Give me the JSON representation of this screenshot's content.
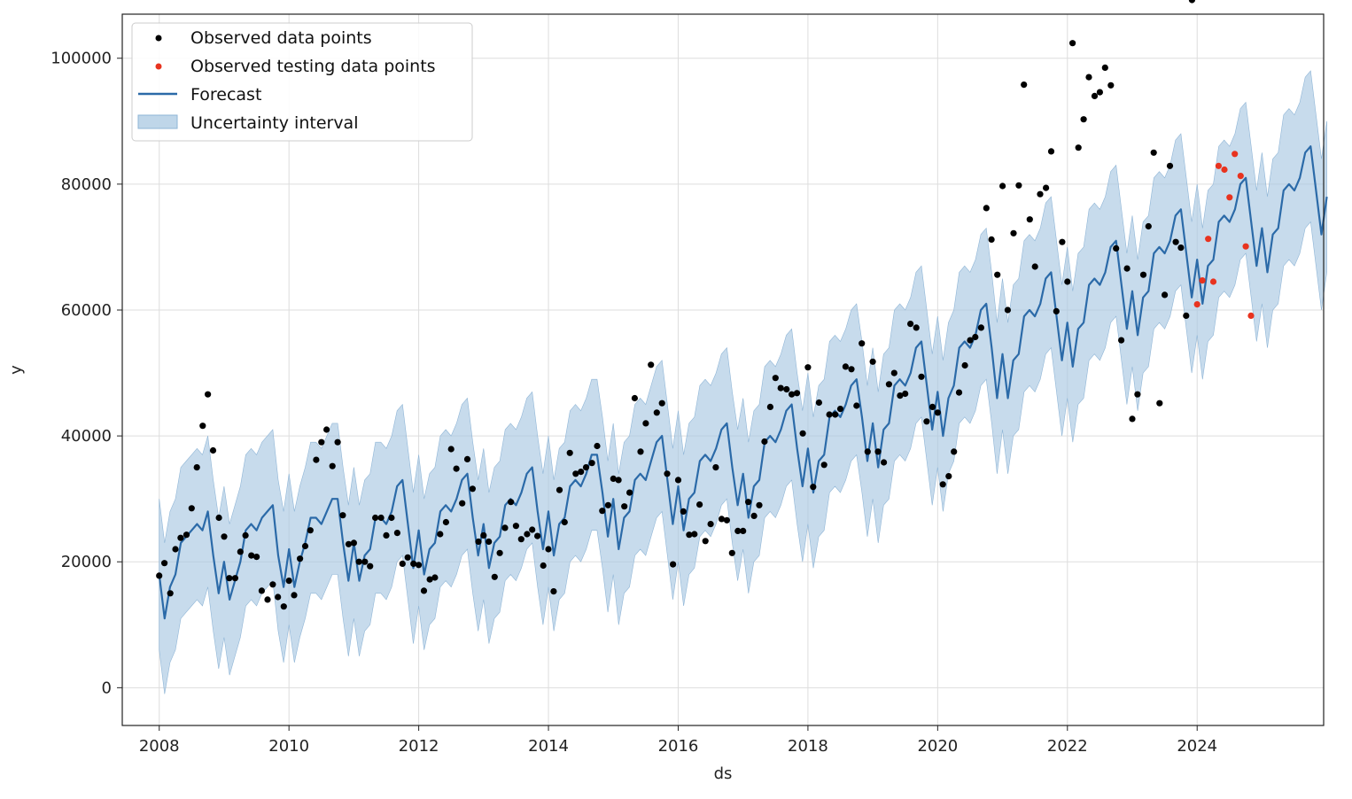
{
  "chart_data": {
    "type": "line",
    "title": "",
    "xlabel": "ds",
    "ylabel": "y",
    "x_range": [
      2007.43,
      2025.95
    ],
    "ylim": [
      -6000,
      107000
    ],
    "x_ticks": [
      2008,
      2010,
      2012,
      2014,
      2016,
      2018,
      2020,
      2022,
      2024
    ],
    "x_tick_labels": [
      "2008",
      "2010",
      "2012",
      "2014",
      "2016",
      "2018",
      "2020",
      "2022",
      "2024"
    ],
    "y_ticks": [
      0,
      20000,
      40000,
      60000,
      80000,
      100000
    ],
    "y_tick_labels": [
      "0",
      "20000",
      "40000",
      "60000",
      "80000",
      "100000"
    ],
    "grid": true,
    "legend_position": "top-left",
    "colors": {
      "observed": "#000000",
      "testing": "#e8331f",
      "forecast": "#2b6aa8",
      "interval": "#a9c8e2"
    },
    "legend": [
      {
        "key": "observed",
        "label": "Observed data points"
      },
      {
        "key": "testing",
        "label": "Observed testing data points"
      },
      {
        "key": "forecast",
        "label": "Forecast"
      },
      {
        "key": "interval",
        "label": "Uncertainty interval"
      }
    ],
    "forecast_start": 2008.0,
    "forecast_step": 0.08333,
    "forecast": [
      18000,
      11000,
      16000,
      18000,
      23000,
      24000,
      25000,
      26000,
      25000,
      28000,
      21000,
      15000,
      20000,
      14000,
      17000,
      20000,
      25000,
      26000,
      25000,
      27000,
      28000,
      29000,
      21000,
      16000,
      22000,
      16000,
      20000,
      23000,
      27000,
      27000,
      26000,
      28000,
      30000,
      30000,
      23000,
      17000,
      23000,
      17000,
      21000,
      22000,
      27000,
      27000,
      26000,
      28000,
      32000,
      33000,
      26000,
      19000,
      25000,
      18000,
      22000,
      23000,
      28000,
      29000,
      28000,
      30000,
      33000,
      34000,
      27000,
      21000,
      26000,
      19000,
      23000,
      24000,
      29000,
      30000,
      29000,
      31000,
      34000,
      35000,
      28000,
      22000,
      28000,
      21000,
      26000,
      27000,
      32000,
      33000,
      32000,
      34000,
      37000,
      37000,
      31000,
      24000,
      30000,
      22000,
      27000,
      28000,
      33000,
      34000,
      33000,
      36000,
      39000,
      40000,
      33000,
      26000,
      32000,
      25000,
      30000,
      31000,
      36000,
      37000,
      36000,
      38000,
      41000,
      42000,
      35000,
      29000,
      34000,
      27000,
      32000,
      33000,
      39000,
      40000,
      39000,
      41000,
      44000,
      45000,
      38000,
      32000,
      38000,
      31000,
      36000,
      37000,
      43000,
      44000,
      43000,
      45000,
      48000,
      49000,
      43000,
      36000,
      42000,
      35000,
      41000,
      42000,
      48000,
      49000,
      48000,
      50000,
      54000,
      55000,
      48000,
      41000,
      47000,
      40000,
      46000,
      48000,
      54000,
      55000,
      54000,
      56000,
      60000,
      61000,
      54000,
      46000,
      53000,
      46000,
      52000,
      53000,
      59000,
      60000,
      59000,
      61000,
      65000,
      66000,
      59000,
      52000,
      58000,
      51000,
      57000,
      58000,
      64000,
      65000,
      64000,
      66000,
      70000,
      71000,
      64000,
      57000,
      63000,
      56000,
      62000,
      63000,
      69000,
      70000,
      69000,
      71000,
      75000,
      76000,
      69000,
      62000,
      68000,
      61000,
      67000,
      68000,
      74000,
      75000,
      74000,
      76000,
      80000,
      81000,
      74000,
      67000,
      73000,
      66000,
      72000,
      73000,
      79000,
      80000,
      79000,
      81000,
      85000,
      86000,
      79000,
      72000,
      78000
    ],
    "interval_lower": [
      6000,
      -1000,
      4000,
      6000,
      11000,
      12000,
      13000,
      14000,
      13000,
      16000,
      9000,
      3000,
      8000,
      2000,
      5000,
      8000,
      13000,
      14000,
      13000,
      15000,
      16000,
      17000,
      9000,
      4000,
      10000,
      4000,
      8000,
      11000,
      15000,
      15000,
      14000,
      16000,
      18000,
      18000,
      11000,
      5000,
      11000,
      5000,
      9000,
      10000,
      15000,
      15000,
      14000,
      16000,
      20000,
      21000,
      14000,
      7000,
      13000,
      6000,
      10000,
      11000,
      16000,
      17000,
      16000,
      18000,
      21000,
      22000,
      15000,
      9000,
      14000,
      7000,
      11000,
      12000,
      17000,
      18000,
      17000,
      19000,
      22000,
      23000,
      16000,
      10000,
      16000,
      9000,
      14000,
      15000,
      20000,
      21000,
      20000,
      22000,
      25000,
      25000,
      19000,
      12000,
      18000,
      10000,
      15000,
      16000,
      21000,
      22000,
      21000,
      24000,
      27000,
      28000,
      21000,
      14000,
      20000,
      13000,
      18000,
      19000,
      24000,
      25000,
      24000,
      26000,
      29000,
      30000,
      23000,
      17000,
      22000,
      15000,
      20000,
      21000,
      27000,
      28000,
      27000,
      29000,
      32000,
      33000,
      26000,
      20000,
      26000,
      19000,
      24000,
      25000,
      31000,
      32000,
      31000,
      33000,
      36000,
      37000,
      31000,
      24000,
      30000,
      23000,
      29000,
      30000,
      36000,
      37000,
      36000,
      38000,
      42000,
      43000,
      36000,
      29000,
      35000,
      28000,
      34000,
      36000,
      42000,
      43000,
      42000,
      44000,
      48000,
      49000,
      42000,
      34000,
      41000,
      34000,
      40000,
      41000,
      47000,
      48000,
      47000,
      49000,
      53000,
      54000,
      47000,
      40000,
      46000,
      39000,
      45000,
      46000,
      52000,
      53000,
      52000,
      54000,
      58000,
      59000,
      52000,
      45000,
      51000,
      44000,
      50000,
      51000,
      57000,
      58000,
      57000,
      59000,
      63000,
      64000,
      57000,
      50000,
      56000,
      49000,
      55000,
      56000,
      62000,
      63000,
      62000,
      64000,
      68000,
      69000,
      62000,
      55000,
      61000,
      54000,
      60000,
      61000,
      67000,
      68000,
      67000,
      69000,
      73000,
      74000,
      67000,
      60000,
      66000
    ],
    "interval_upper": [
      30000,
      23000,
      28000,
      30000,
      35000,
      36000,
      37000,
      38000,
      37000,
      40000,
      33000,
      27000,
      32000,
      26000,
      29000,
      32000,
      37000,
      38000,
      37000,
      39000,
      40000,
      41000,
      33000,
      28000,
      34000,
      28000,
      32000,
      35000,
      39000,
      39000,
      38000,
      40000,
      42000,
      42000,
      35000,
      29000,
      35000,
      29000,
      33000,
      34000,
      39000,
      39000,
      38000,
      40000,
      44000,
      45000,
      38000,
      31000,
      37000,
      30000,
      34000,
      35000,
      40000,
      41000,
      40000,
      42000,
      45000,
      46000,
      39000,
      33000,
      38000,
      31000,
      35000,
      36000,
      41000,
      42000,
      41000,
      43000,
      46000,
      47000,
      40000,
      34000,
      40000,
      33000,
      38000,
      39000,
      44000,
      45000,
      44000,
      46000,
      49000,
      49000,
      43000,
      36000,
      42000,
      34000,
      39000,
      40000,
      45000,
      46000,
      45000,
      48000,
      51000,
      52000,
      45000,
      38000,
      44000,
      37000,
      42000,
      43000,
      48000,
      49000,
      48000,
      50000,
      53000,
      54000,
      47000,
      41000,
      46000,
      39000,
      44000,
      45000,
      51000,
      52000,
      51000,
      53000,
      56000,
      57000,
      50000,
      44000,
      50000,
      43000,
      48000,
      49000,
      55000,
      56000,
      55000,
      57000,
      60000,
      61000,
      55000,
      48000,
      54000,
      47000,
      53000,
      54000,
      60000,
      61000,
      60000,
      62000,
      66000,
      67000,
      60000,
      53000,
      59000,
      52000,
      58000,
      60000,
      66000,
      67000,
      66000,
      68000,
      72000,
      73000,
      66000,
      58000,
      65000,
      58000,
      64000,
      65000,
      71000,
      72000,
      71000,
      73000,
      77000,
      78000,
      71000,
      64000,
      70000,
      63000,
      69000,
      70000,
      76000,
      77000,
      76000,
      78000,
      82000,
      83000,
      76000,
      69000,
      75000,
      68000,
      74000,
      75000,
      81000,
      82000,
      81000,
      83000,
      87000,
      88000,
      81000,
      74000,
      80000,
      73000,
      79000,
      80000,
      86000,
      87000,
      86000,
      88000,
      92000,
      93000,
      86000,
      79000,
      85000,
      78000,
      84000,
      85000,
      91000,
      92000,
      91000,
      93000,
      97000,
      98000,
      91000,
      84000,
      90000
    ],
    "observed_x": [
      2008.0,
      2008.08,
      2008.17,
      2008.25,
      2008.33,
      2008.42,
      2008.5,
      2008.58,
      2008.67,
      2008.75,
      2008.83,
      2008.92,
      2009.0,
      2009.08,
      2009.17,
      2009.25,
      2009.33,
      2009.42,
      2009.5,
      2009.58,
      2009.67,
      2009.75,
      2009.83,
      2009.92,
      2010.0,
      2010.08,
      2010.17,
      2010.25,
      2010.33,
      2010.42,
      2010.5,
      2010.58,
      2010.67,
      2010.75,
      2010.83,
      2010.92,
      2011.0,
      2011.08,
      2011.17,
      2011.25,
      2011.33,
      2011.42,
      2011.5,
      2011.58,
      2011.67,
      2011.75,
      2011.83,
      2011.92,
      2012.0,
      2012.08,
      2012.17,
      2012.25,
      2012.33,
      2012.42,
      2012.5,
      2012.58,
      2012.67,
      2012.75,
      2012.83,
      2012.92,
      2013.0,
      2013.08,
      2013.17,
      2013.25,
      2013.33,
      2013.42,
      2013.5,
      2013.58,
      2013.67,
      2013.75,
      2013.83,
      2013.92,
      2014.0,
      2014.08,
      2014.17,
      2014.25,
      2014.33,
      2014.42,
      2014.5,
      2014.58,
      2014.67,
      2014.75,
      2014.83,
      2014.92,
      2015.0,
      2015.08,
      2015.17,
      2015.25,
      2015.33,
      2015.42,
      2015.5,
      2015.58,
      2015.67,
      2015.75,
      2015.83,
      2015.92,
      2016.0,
      2016.08,
      2016.17,
      2016.25,
      2016.33,
      2016.42,
      2016.5,
      2016.58,
      2016.67,
      2016.75,
      2016.83,
      2016.92,
      2017.0,
      2017.08,
      2017.17,
      2017.25,
      2017.33,
      2017.42,
      2017.5,
      2017.58,
      2017.67,
      2017.75,
      2017.83,
      2017.92,
      2018.0,
      2018.08,
      2018.17,
      2018.25,
      2018.33,
      2018.42,
      2018.5,
      2018.58,
      2018.67,
      2018.75,
      2018.83,
      2018.92,
      2019.0,
      2019.08,
      2019.17,
      2019.25,
      2019.33,
      2019.42,
      2019.5,
      2019.58,
      2019.67,
      2019.75,
      2019.83,
      2019.92,
      2020.0,
      2020.08,
      2020.17,
      2020.25,
      2020.33,
      2020.42,
      2020.5,
      2020.58,
      2020.67,
      2020.75,
      2020.83,
      2020.92,
      2021.0,
      2021.08,
      2021.17,
      2021.25,
      2021.33,
      2021.42,
      2021.5,
      2021.58,
      2021.67,
      2021.75,
      2021.83,
      2021.92,
      2022.0,
      2022.08,
      2022.17,
      2022.25,
      2022.33,
      2022.42,
      2022.5,
      2022.58,
      2022.67,
      2022.75,
      2022.83,
      2022.92,
      2023.0,
      2023.08,
      2023.17,
      2023.25,
      2023.33,
      2023.42,
      2023.5,
      2023.58,
      2023.67,
      2023.75,
      2023.83,
      2023.92
    ],
    "observed_y": [
      17800,
      19800,
      15000,
      22000,
      23800,
      24300,
      28500,
      35000,
      41600,
      46600,
      37700,
      27000,
      24000,
      17400,
      17400,
      21600,
      24200,
      21000,
      20800,
      15400,
      14000,
      16400,
      14400,
      12900,
      17000,
      14700,
      20500,
      22500,
      25000,
      36200,
      39000,
      41000,
      35200,
      39000,
      27400,
      22800,
      23000,
      20000,
      20000,
      19300,
      27000,
      27000,
      24200,
      27000,
      24600,
      19700,
      20700,
      19700,
      19500,
      15400,
      17200,
      17500,
      24400,
      26300,
      37900,
      34800,
      29300,
      36300,
      31600,
      23200,
      24200,
      23200,
      17600,
      21400,
      25400,
      29500,
      25700,
      23600,
      24400,
      25100,
      24100,
      19400,
      22000,
      15300,
      31400,
      26300,
      37300,
      34000,
      34300,
      35000,
      35700,
      38400,
      28100,
      29000,
      33200,
      33000,
      28800,
      31000,
      46000,
      37500,
      42000,
      51300,
      43700,
      45200,
      34000,
      19600,
      33000,
      28000,
      24300,
      24400,
      29100,
      23300,
      26000,
      35000,
      26800,
      26600,
      21400,
      24900,
      24900,
      29500,
      27300,
      29000,
      39100,
      44600,
      49200,
      47600,
      47400,
      46600,
      46800,
      40400,
      50900,
      31900,
      45300,
      35400,
      43400,
      43400,
      44300,
      51000,
      50600,
      44800,
      54700,
      37500,
      51800,
      37500,
      35800,
      48200,
      50000,
      46400,
      46700,
      57800,
      57200,
      49400,
      42300,
      44600,
      43700,
      32300,
      33600,
      37500,
      46900,
      51200,
      55200,
      55700,
      57200,
      76200,
      71200,
      65600,
      79700,
      60000,
      72200,
      79800,
      95800,
      74400,
      66900,
      78400,
      79400,
      85200,
      59800,
      70800,
      64500,
      102400,
      85800,
      90300,
      97000,
      94000,
      94600,
      98500,
      95700,
      69800,
      55200,
      66600,
      42700,
      46600,
      65600,
      73300,
      85000,
      45200,
      62400,
      82900,
      70800,
      69900,
      59100
    ],
    "testing_x": [
      2024.0,
      2024.08,
      2024.17,
      2024.25,
      2024.33,
      2024.42,
      2024.5,
      2024.58,
      2024.67,
      2024.75,
      2024.83
    ],
    "testing_y": [
      60900,
      64700,
      71300,
      64500,
      82900,
      82300,
      77900,
      84800,
      81300,
      70100,
      59100
    ]
  }
}
